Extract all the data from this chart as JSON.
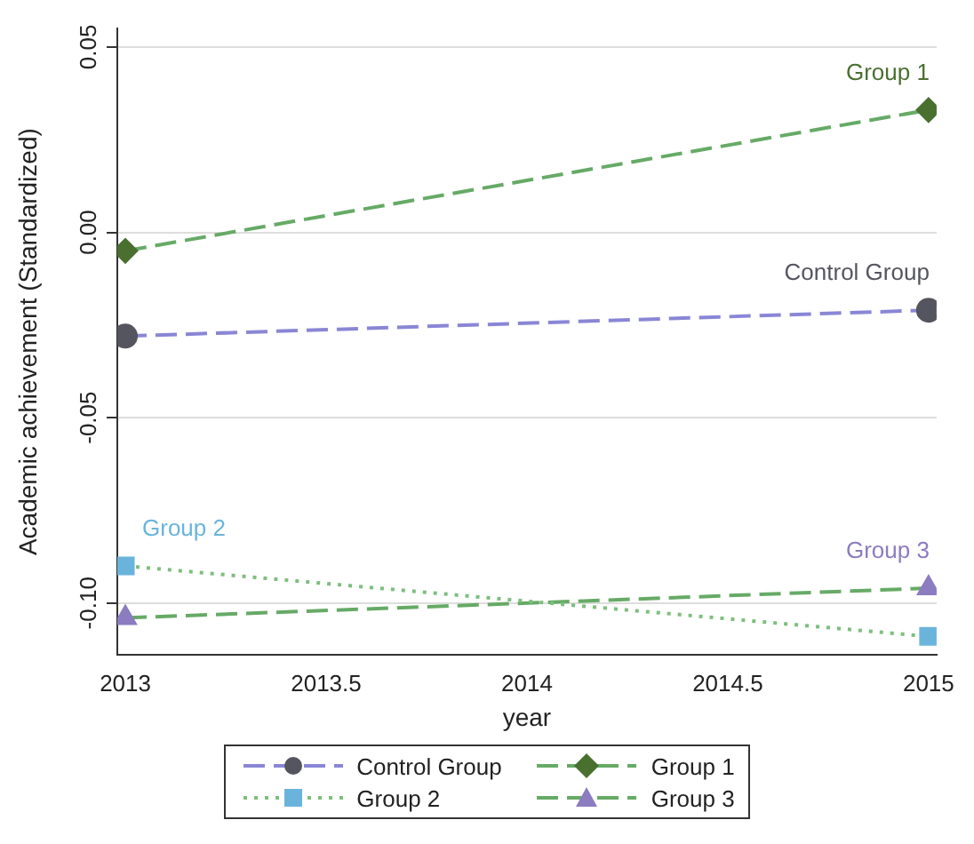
{
  "chart_data": {
    "type": "line",
    "xlabel": "year",
    "ylabel": "Academic achievement (Standardized)",
    "x": [
      2013,
      2015
    ],
    "series": [
      {
        "name": "Control Group",
        "color": "#8a86d6",
        "colors": [
          "#55555f",
          "#55555f"
        ],
        "values": [
          -0.028,
          -0.021
        ],
        "line_style": "dashed",
        "marker": "circle"
      },
      {
        "name": "Group 1",
        "color": "#66aa66",
        "colors": [
          "#4a7030",
          "#4a7030"
        ],
        "values": [
          -0.005,
          0.033
        ],
        "line_style": "dashed",
        "marker": "diamond"
      },
      {
        "name": "Group 2",
        "color": "#7cbf7c",
        "colors": [
          "#6ab4dc",
          "#6ab4dc"
        ],
        "values": [
          -0.09,
          -0.109
        ],
        "line_style": "dotted",
        "marker": "square"
      },
      {
        "name": "Group 3",
        "color": "#66aa66",
        "colors": [
          "#8c7cc0",
          "#8c7cc0"
        ],
        "values": [
          -0.104,
          -0.096
        ],
        "line_style": "dashed",
        "marker": "triangle"
      }
    ],
    "xlim": [
      2012.98,
      2015.02
    ],
    "xticks": [
      2013,
      2013.5,
      2014,
      2014.5,
      2015
    ],
    "ylim": [
      -0.114,
      0.055
    ],
    "yticks": [
      {
        "value": -0.1,
        "label": "-0.10"
      },
      {
        "value": -0.05,
        "label": "-0.05"
      },
      {
        "value": 0,
        "label": "0.00"
      },
      {
        "value": 0.05,
        "label": "0.05"
      }
    ],
    "grid": "y",
    "legend": "bottom"
  }
}
